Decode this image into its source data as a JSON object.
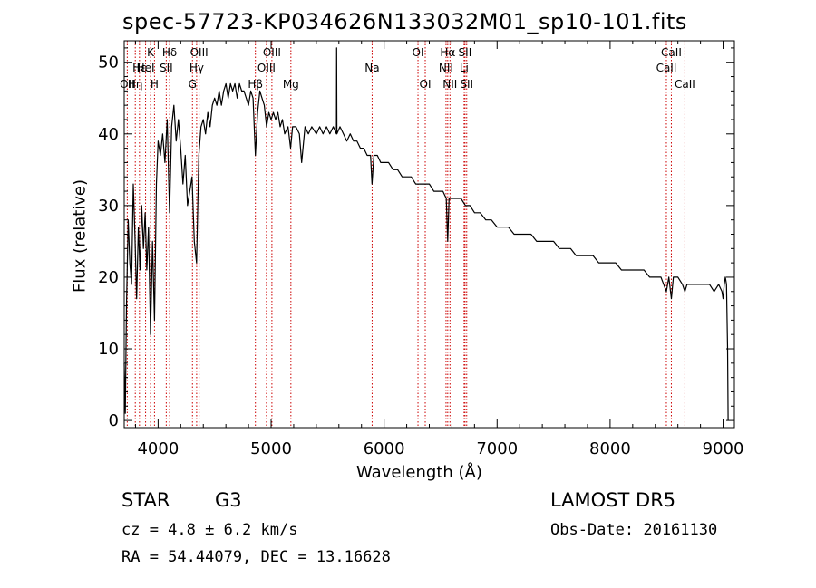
{
  "chart_data": {
    "type": "line",
    "title": "spec-57723-KP034626N133032M01_sp10-101.fits",
    "xlabel": "Wavelength (Å)",
    "ylabel": "Flux (relative)",
    "xlim": [
      3700,
      9100
    ],
    "ylim": [
      -1,
      53
    ],
    "xticks": [
      4000,
      5000,
      6000,
      7000,
      8000,
      9000
    ],
    "yticks": [
      0,
      10,
      20,
      30,
      40,
      50
    ],
    "grid": false,
    "line_color": "#000000",
    "marker_color": "#cc0000",
    "series": [
      {
        "values": [
          [
            3700,
            8
          ],
          [
            3710,
            1
          ],
          [
            3720,
            16
          ],
          [
            3735,
            28
          ],
          [
            3750,
            22
          ],
          [
            3765,
            19
          ],
          [
            3780,
            33
          ],
          [
            3795,
            26
          ],
          [
            3810,
            17
          ],
          [
            3825,
            27
          ],
          [
            3840,
            21
          ],
          [
            3855,
            30
          ],
          [
            3870,
            24
          ],
          [
            3885,
            29
          ],
          [
            3900,
            21
          ],
          [
            3915,
            27
          ],
          [
            3933,
            12
          ],
          [
            3950,
            25
          ],
          [
            3968,
            14
          ],
          [
            3985,
            33
          ],
          [
            4000,
            39
          ],
          [
            4020,
            37
          ],
          [
            4040,
            40
          ],
          [
            4060,
            36
          ],
          [
            4080,
            42
          ],
          [
            4101,
            29
          ],
          [
            4120,
            41
          ],
          [
            4140,
            44
          ],
          [
            4160,
            39
          ],
          [
            4180,
            42
          ],
          [
            4200,
            38
          ],
          [
            4220,
            33
          ],
          [
            4240,
            37
          ],
          [
            4260,
            30
          ],
          [
            4280,
            32
          ],
          [
            4300,
            34
          ],
          [
            4320,
            25
          ],
          [
            4340,
            22
          ],
          [
            4360,
            37
          ],
          [
            4380,
            41
          ],
          [
            4400,
            42
          ],
          [
            4420,
            40
          ],
          [
            4440,
            43
          ],
          [
            4460,
            41
          ],
          [
            4480,
            44
          ],
          [
            4500,
            45
          ],
          [
            4520,
            44
          ],
          [
            4540,
            46
          ],
          [
            4560,
            44
          ],
          [
            4580,
            46
          ],
          [
            4600,
            47
          ],
          [
            4620,
            45
          ],
          [
            4640,
            47
          ],
          [
            4660,
            46
          ],
          [
            4680,
            47
          ],
          [
            4700,
            45
          ],
          [
            4720,
            47
          ],
          [
            4740,
            46
          ],
          [
            4760,
            46
          ],
          [
            4780,
            45
          ],
          [
            4800,
            44
          ],
          [
            4820,
            46
          ],
          [
            4840,
            45
          ],
          [
            4861,
            37
          ],
          [
            4880,
            43
          ],
          [
            4900,
            46
          ],
          [
            4920,
            45
          ],
          [
            4940,
            44
          ],
          [
            4960,
            41
          ],
          [
            4980,
            43
          ],
          [
            5000,
            42
          ],
          [
            5020,
            43
          ],
          [
            5040,
            42
          ],
          [
            5060,
            43
          ],
          [
            5080,
            41
          ],
          [
            5100,
            42
          ],
          [
            5120,
            40
          ],
          [
            5150,
            41
          ],
          [
            5172,
            38
          ],
          [
            5190,
            41
          ],
          [
            5220,
            41
          ],
          [
            5250,
            40
          ],
          [
            5270,
            36
          ],
          [
            5300,
            41
          ],
          [
            5330,
            40
          ],
          [
            5360,
            41
          ],
          [
            5400,
            40
          ],
          [
            5430,
            41
          ],
          [
            5460,
            40
          ],
          [
            5490,
            41
          ],
          [
            5520,
            40
          ],
          [
            5550,
            41
          ],
          [
            5578,
            40
          ],
          [
            5580,
            52
          ],
          [
            5582,
            40
          ],
          [
            5610,
            41
          ],
          [
            5640,
            40
          ],
          [
            5670,
            39
          ],
          [
            5700,
            40
          ],
          [
            5730,
            39
          ],
          [
            5760,
            39
          ],
          [
            5790,
            38
          ],
          [
            5820,
            38
          ],
          [
            5850,
            37
          ],
          [
            5880,
            37
          ],
          [
            5893,
            33
          ],
          [
            5910,
            37
          ],
          [
            5940,
            37
          ],
          [
            5970,
            36
          ],
          [
            6000,
            36
          ],
          [
            6040,
            36
          ],
          [
            6080,
            35
          ],
          [
            6120,
            35
          ],
          [
            6160,
            34
          ],
          [
            6200,
            34
          ],
          [
            6240,
            34
          ],
          [
            6280,
            33
          ],
          [
            6320,
            33
          ],
          [
            6360,
            33
          ],
          [
            6400,
            33
          ],
          [
            6440,
            32
          ],
          [
            6480,
            32
          ],
          [
            6520,
            32
          ],
          [
            6550,
            31
          ],
          [
            6563,
            25
          ],
          [
            6575,
            31
          ],
          [
            6600,
            31
          ],
          [
            6640,
            31
          ],
          [
            6680,
            31
          ],
          [
            6720,
            30
          ],
          [
            6760,
            30
          ],
          [
            6800,
            29
          ],
          [
            6850,
            29
          ],
          [
            6900,
            28
          ],
          [
            6950,
            28
          ],
          [
            7000,
            27
          ],
          [
            7050,
            27
          ],
          [
            7100,
            27
          ],
          [
            7150,
            26
          ],
          [
            7200,
            26
          ],
          [
            7250,
            26
          ],
          [
            7300,
            26
          ],
          [
            7350,
            25
          ],
          [
            7400,
            25
          ],
          [
            7450,
            25
          ],
          [
            7500,
            25
          ],
          [
            7550,
            24
          ],
          [
            7600,
            24
          ],
          [
            7650,
            24
          ],
          [
            7700,
            23
          ],
          [
            7750,
            23
          ],
          [
            7800,
            23
          ],
          [
            7850,
            23
          ],
          [
            7900,
            22
          ],
          [
            7950,
            22
          ],
          [
            8000,
            22
          ],
          [
            8050,
            22
          ],
          [
            8100,
            21
          ],
          [
            8150,
            21
          ],
          [
            8200,
            21
          ],
          [
            8250,
            21
          ],
          [
            8300,
            21
          ],
          [
            8350,
            20
          ],
          [
            8400,
            20
          ],
          [
            8450,
            20
          ],
          [
            8498,
            18
          ],
          [
            8520,
            20
          ],
          [
            8542,
            17
          ],
          [
            8560,
            20
          ],
          [
            8600,
            20
          ],
          [
            8640,
            19
          ],
          [
            8662,
            18
          ],
          [
            8680,
            19
          ],
          [
            8720,
            19
          ],
          [
            8760,
            19
          ],
          [
            8800,
            19
          ],
          [
            8840,
            19
          ],
          [
            8880,
            19
          ],
          [
            8920,
            18
          ],
          [
            8960,
            19
          ],
          [
            8990,
            18
          ],
          [
            9000,
            17
          ],
          [
            9010,
            19
          ],
          [
            9020,
            20
          ],
          [
            9030,
            19
          ],
          [
            9040,
            10
          ],
          [
            9045,
            0
          ]
        ]
      }
    ],
    "line_markers": [
      {
        "wavelength": 3727,
        "label": "OII",
        "row": 2
      },
      {
        "wavelength": 3798,
        "label": "Hη",
        "row": 2
      },
      {
        "wavelength": 3835,
        "label": "Hε",
        "row": 1
      },
      {
        "wavelength": 3889,
        "label": "HeI",
        "row": 1
      },
      {
        "wavelength": 3933,
        "label": "K",
        "row": 0
      },
      {
        "wavelength": 3968,
        "label": "H",
        "row": 2
      },
      {
        "wavelength": 4072,
        "label": "SII",
        "row": 1
      },
      {
        "wavelength": 4102,
        "label": "Hδ",
        "row": 0
      },
      {
        "wavelength": 4304,
        "label": "G",
        "row": 2
      },
      {
        "wavelength": 4341,
        "label": "Hγ",
        "row": 1
      },
      {
        "wavelength": 4363,
        "label": "OIII",
        "row": 0
      },
      {
        "wavelength": 4861,
        "label": "Hβ",
        "row": 2
      },
      {
        "wavelength": 4959,
        "label": "OIII",
        "row": 1
      },
      {
        "wavelength": 5007,
        "label": "OIII",
        "row": 0
      },
      {
        "wavelength": 5175,
        "label": "Mg",
        "row": 2
      },
      {
        "wavelength": 5894,
        "label": "Na",
        "row": 1
      },
      {
        "wavelength": 6300,
        "label": "OI",
        "row": 0
      },
      {
        "wavelength": 6364,
        "label": "OI",
        "row": 2
      },
      {
        "wavelength": 6548,
        "label": "NII",
        "row": 1
      },
      {
        "wavelength": 6563,
        "label": "Hα",
        "row": 0
      },
      {
        "wavelength": 6583,
        "label": "NII",
        "row": 2
      },
      {
        "wavelength": 6708,
        "label": "Li",
        "row": 1
      },
      {
        "wavelength": 6716,
        "label": "SII",
        "row": 0
      },
      {
        "wavelength": 6731,
        "label": "SII",
        "row": 2
      },
      {
        "wavelength": 8498,
        "label": "CaII",
        "row": 1
      },
      {
        "wavelength": 8542,
        "label": "CaII",
        "row": 0
      },
      {
        "wavelength": 8662,
        "label": "CaII",
        "row": 2
      }
    ]
  },
  "info": {
    "class": "STAR",
    "subclass": "G3",
    "survey": "LAMOST DR5",
    "cz": "cz = 4.8 ± 6.2 km/s",
    "obs_date": "Obs-Date: 20161130",
    "radec": "RA =  54.44079, DEC =  13.16628"
  }
}
